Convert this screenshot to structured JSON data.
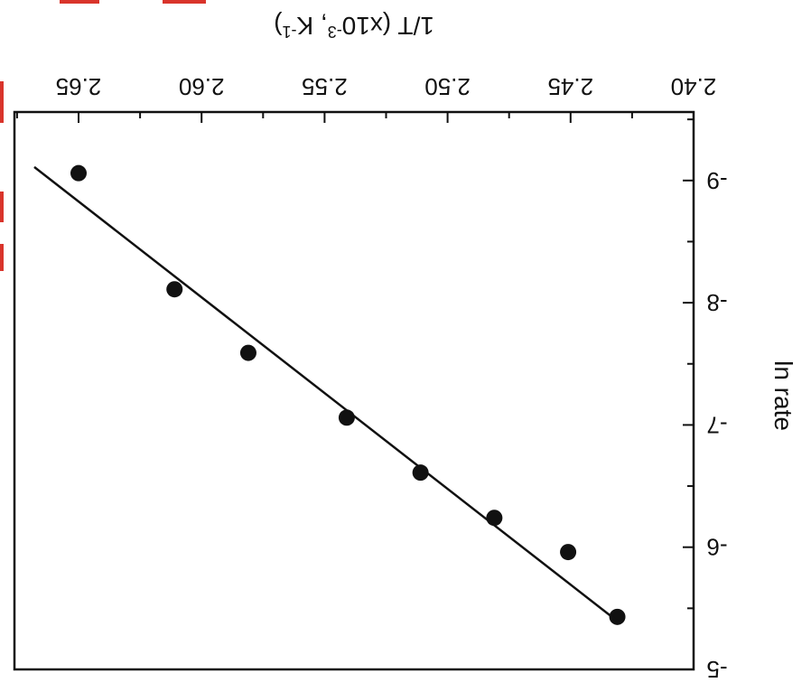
{
  "colors": {
    "ink": "#111111",
    "crop_marks": "#d9342b",
    "background": "#ffffff"
  },
  "chart_data": {
    "type": "scatter",
    "orientation": "rotated-180",
    "title": "",
    "xlabel": "1/T (x10-3, K-1)",
    "ylabel": "ln rate",
    "xlim": [
      2.4,
      2.66
    ],
    "ylim": [
      -9.8,
      -5.0
    ],
    "grid": false,
    "legend": "none",
    "x_ticks": [
      {
        "value": 2.4,
        "label": "2.40"
      },
      {
        "value": 2.45,
        "label": "2.45"
      },
      {
        "value": 2.5,
        "label": "2.50"
      },
      {
        "value": 2.55,
        "label": "2.55"
      },
      {
        "value": 2.6,
        "label": "2.60"
      },
      {
        "value": 2.65,
        "label": "2.65"
      }
    ],
    "y_ticks": [
      {
        "value": -5,
        "label": "-5"
      },
      {
        "value": -6,
        "label": "-6"
      },
      {
        "value": -7,
        "label": "-7"
      },
      {
        "value": -8,
        "label": "-8"
      },
      {
        "value": -9,
        "label": "-9"
      }
    ],
    "series": [
      {
        "type": "scatter",
        "x": [
          2.431,
          2.451,
          2.481,
          2.511,
          2.541,
          2.581,
          2.611,
          2.65
        ],
        "y": [
          -5.43,
          -5.96,
          -6.24,
          -6.61,
          -7.06,
          -7.59,
          -8.11,
          -9.06
        ]
      },
      {
        "type": "line",
        "x": [
          2.43,
          2.668
        ],
        "y": [
          -5.38,
          -9.11
        ]
      }
    ]
  }
}
